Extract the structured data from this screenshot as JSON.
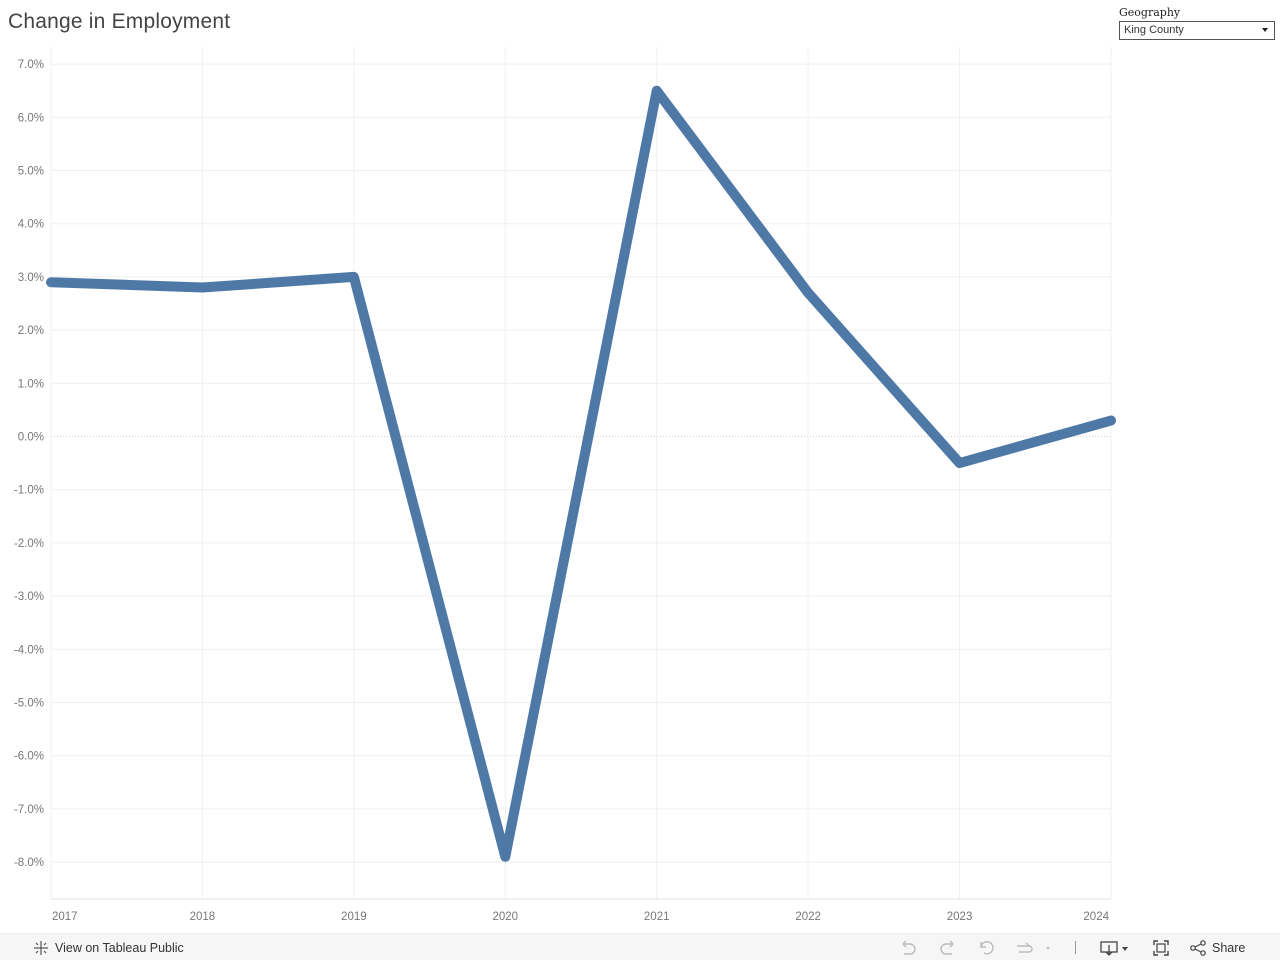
{
  "title": "Change in Employment",
  "filter": {
    "label": "Geography",
    "value": "King County"
  },
  "chart_data": {
    "type": "line",
    "x": [
      "2017",
      "2018",
      "2019",
      "2020",
      "2021",
      "2022",
      "2023",
      "2024"
    ],
    "series": [
      {
        "values": [
          2.9,
          2.8,
          3.0,
          -7.9,
          6.5,
          2.7,
          -0.5,
          0.3
        ]
      }
    ],
    "yticks": [
      "7.0%",
      "6.0%",
      "5.0%",
      "4.0%",
      "3.0%",
      "2.0%",
      "1.0%",
      "0.0%",
      "-1.0%",
      "-2.0%",
      "-3.0%",
      "-4.0%",
      "-5.0%",
      "-6.0%",
      "-7.0%",
      "-8.0%"
    ],
    "ylim": [
      -8.7,
      7.2
    ],
    "color": "#4e79a7",
    "grid": true
  },
  "footer": {
    "view_label": "View on Tableau Public",
    "share_label": "Share"
  },
  "icons": {
    "tableau": "tableau-logo-icon",
    "undo": "undo-icon",
    "redo": "redo-icon",
    "revert": "revert-icon",
    "refresh": "refresh-icon",
    "download": "download-icon",
    "fullscreen": "fullscreen-icon",
    "share": "share-icon"
  }
}
